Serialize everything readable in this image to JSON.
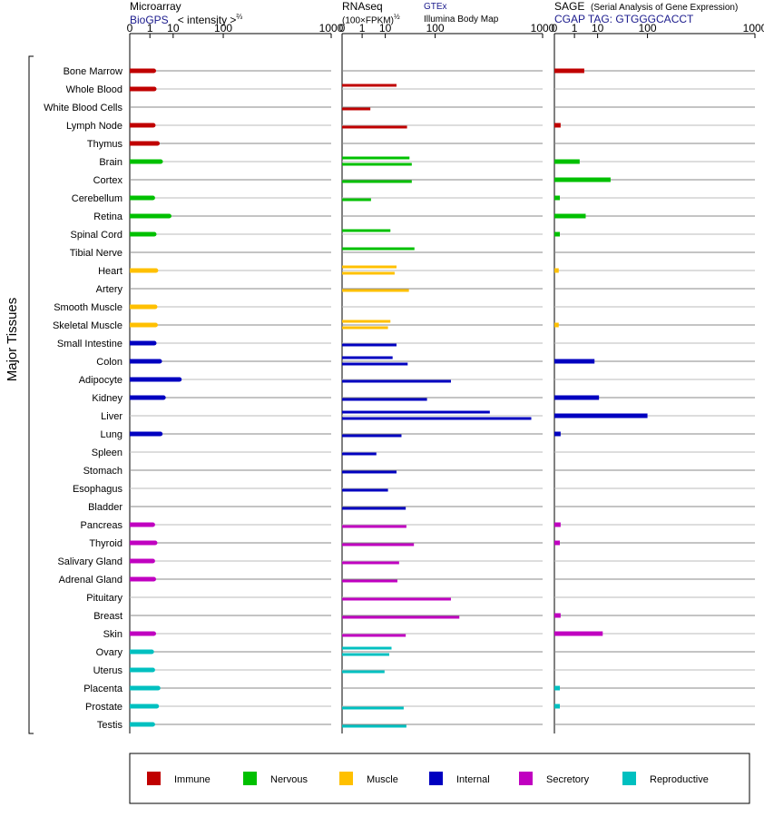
{
  "headers": {
    "microarray": {
      "title": "Microarray",
      "source": "BioGPS",
      "intensity": "< intensity >",
      "intensity_exp": "⅔"
    },
    "rnaseq": {
      "title": "RNAseq",
      "gtex": "GTEx",
      "unit": "(100×FPKM)",
      "unit_exp": "½",
      "illumina": "Illumina Body Map"
    },
    "sage": {
      "title": "SAGE",
      "subtitle": "(Serial Analysis of Gene Expression)",
      "tag": "CGAP TAG: GTGGGCACCT"
    }
  },
  "group_label": "Major Tissues",
  "chart_data": {
    "type": "bar",
    "tick_labels": [
      "0",
      "1",
      "10",
      "100",
      "1000"
    ],
    "xlim": [
      0,
      1000
    ],
    "categories": [
      "Bone Marrow",
      "Whole Blood",
      "White Blood Cells",
      "Lymph Node",
      "Thymus",
      "Brain",
      "Cortex",
      "Cerebellum",
      "Retina",
      "Spinal Cord",
      "Tibial Nerve",
      "Heart",
      "Artery",
      "Smooth Muscle",
      "Skeletal Muscle",
      "Small Intestine",
      "Colon",
      "Adipocyte",
      "Kidney",
      "Liver",
      "Lung",
      "Spleen",
      "Stomach",
      "Esophagus",
      "Bladder",
      "Pancreas",
      "Thyroid",
      "Salivary Gland",
      "Adrenal Gland",
      "Pituitary",
      "Breast",
      "Skin",
      "Ovary",
      "Uterus",
      "Placenta",
      "Prostate",
      "Testis"
    ],
    "category_groups": [
      "Immune",
      "Immune",
      "Immune",
      "Immune",
      "Immune",
      "Nervous",
      "Nervous",
      "Nervous",
      "Nervous",
      "Nervous",
      "Nervous",
      "Muscle",
      "Muscle",
      "Muscle",
      "Muscle",
      "Internal",
      "Internal",
      "Internal",
      "Internal",
      "Internal",
      "Internal",
      "Internal",
      "Internal",
      "Internal",
      "Internal",
      "Secretory",
      "Secretory",
      "Secretory",
      "Secretory",
      "Secretory",
      "Secretory",
      "Secretory",
      "Reproductive",
      "Reproductive",
      "Reproductive",
      "Reproductive",
      "Reproductive"
    ],
    "panels": [
      {
        "name": "Microarray",
        "values": [
          1.7,
          1.8,
          null,
          1.6,
          2.6,
          3.6,
          null,
          1.5,
          7.5,
          1.8,
          null,
          2.2,
          null,
          2.0,
          2.1,
          1.8,
          3.3,
          15,
          4.7,
          null,
          3.5,
          null,
          null,
          null,
          null,
          1.5,
          2.0,
          1.5,
          1.7,
          null,
          null,
          1.7,
          1.3,
          1.5,
          2.8,
          2.4,
          1.5
        ]
      },
      {
        "name": "RNAseq GTEx",
        "values": [
          null,
          20,
          null,
          null,
          null,
          38,
          null,
          null,
          null,
          14,
          47,
          20,
          null,
          null,
          14,
          null,
          16,
          null,
          null,
          400,
          null,
          null,
          null,
          null,
          null,
          null,
          null,
          null,
          null,
          null,
          null,
          null,
          15,
          null,
          null,
          null,
          null
        ]
      },
      {
        "name": "RNAseq Illumina Body Map",
        "values": [
          null,
          null,
          2.8,
          34,
          null,
          42,
          42,
          3.0,
          null,
          null,
          null,
          18,
          37,
          null,
          12,
          20,
          35,
          160,
          76,
          840,
          26,
          5.0,
          20,
          12,
          32,
          33,
          46,
          23,
          21,
          160,
          200,
          32,
          13,
          9.5,
          null,
          29,
          33
        ]
      },
      {
        "name": "SAGE",
        "values": [
          3.3,
          null,
          null,
          0.03,
          null,
          2.0,
          22,
          0.02,
          3.8,
          0.02,
          null,
          0.01,
          null,
          null,
          0.01,
          null,
          8.0,
          null,
          11,
          100,
          0.03,
          null,
          null,
          null,
          null,
          0.03,
          0.02,
          null,
          null,
          null,
          0.03,
          14,
          null,
          null,
          0.02,
          0.02,
          null
        ]
      }
    ],
    "legend": {
      "position": "bottom",
      "entries": [
        {
          "name": "Immune",
          "color": "#c00000"
        },
        {
          "name": "Nervous",
          "color": "#00c000"
        },
        {
          "name": "Muscle",
          "color": "#ffc000"
        },
        {
          "name": "Internal",
          "color": "#0000c0"
        },
        {
          "name": "Secretory",
          "color": "#c000c0"
        },
        {
          "name": "Reproductive",
          "color": "#00c0c0"
        }
      ]
    }
  }
}
